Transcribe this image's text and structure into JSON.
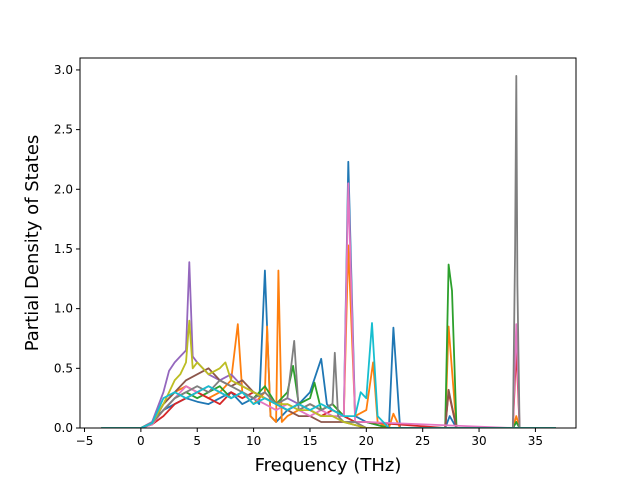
{
  "chart_data": {
    "type": "line",
    "title": "",
    "xlabel": "Frequency (THz)",
    "ylabel": "Partial Density of States",
    "xlim": [
      -5.4,
      38.6
    ],
    "ylim": [
      0.0,
      3.1
    ],
    "xticks": [
      -5,
      0,
      5,
      10,
      15,
      20,
      25,
      30,
      35
    ],
    "xtick_labels": [
      "−5",
      "0",
      "5",
      "10",
      "15",
      "20",
      "25",
      "30",
      "35"
    ],
    "yticks": [
      0.0,
      0.5,
      1.0,
      1.5,
      2.0,
      2.5,
      3.0
    ],
    "ytick_labels": [
      "0.0",
      "0.5",
      "1.0",
      "1.5",
      "2.0",
      "2.5",
      "3.0"
    ],
    "grid": false,
    "legend": "none",
    "colors": [
      "#1f77b4",
      "#ff7f0e",
      "#2ca02c",
      "#d62728",
      "#9467bd",
      "#8c564b",
      "#e377c2",
      "#7f7f7f",
      "#bcbd22",
      "#17becf"
    ],
    "series": [
      {
        "color": "#1f77b4",
        "x": [
          -3.5,
          0,
          1,
          2,
          3,
          4,
          5,
          6,
          7,
          8,
          9,
          10,
          10.5,
          11,
          11.5,
          12,
          13,
          14,
          15,
          16,
          16.5,
          17,
          18,
          18.4,
          19,
          20,
          22,
          22.4,
          23,
          27,
          27.4,
          28,
          33,
          33.3,
          33.6,
          36.8
        ],
        "y": [
          0,
          0,
          0.05,
          0.15,
          0.2,
          0.25,
          0.22,
          0.2,
          0.25,
          0.3,
          0.2,
          0.25,
          0.2,
          1.32,
          0.1,
          0.05,
          0.15,
          0.2,
          0.3,
          0.58,
          0.2,
          0.15,
          0.1,
          2.23,
          0.1,
          0.05,
          0,
          0.84,
          0,
          0,
          0.1,
          0,
          0,
          0.05,
          0,
          0
        ]
      },
      {
        "color": "#ff7f0e",
        "x": [
          -3.5,
          0,
          1,
          2,
          3,
          4,
          5,
          6,
          7,
          8,
          8.6,
          9,
          10,
          11,
          11.2,
          11.5,
          12,
          12.2,
          12.5,
          13,
          14,
          15,
          16,
          17,
          18,
          18.4,
          19,
          20,
          20.6,
          21,
          22,
          22.4,
          23,
          27,
          27.3,
          28,
          33,
          33.3,
          33.6,
          36.8
        ],
        "y": [
          0,
          0,
          0.05,
          0.2,
          0.3,
          0.35,
          0.3,
          0.25,
          0.3,
          0.4,
          0.87,
          0.3,
          0.2,
          0.3,
          0.85,
          0.1,
          0.05,
          1.32,
          0.05,
          0.1,
          0.15,
          0.2,
          0.15,
          0.2,
          0.1,
          1.53,
          0.1,
          0.15,
          0.55,
          0.05,
          0,
          0.12,
          0,
          0,
          0.85,
          0,
          0,
          0.1,
          0,
          0
        ]
      },
      {
        "color": "#2ca02c",
        "x": [
          -3.5,
          0,
          1,
          2,
          3,
          4,
          5,
          6,
          7,
          8,
          9,
          10,
          11,
          12,
          13,
          13.5,
          14,
          15,
          15.4,
          16,
          17,
          18,
          19,
          20,
          22,
          27,
          27.3,
          27.6,
          28,
          33,
          33.3,
          33.6,
          36.8
        ],
        "y": [
          0,
          0,
          0.04,
          0.15,
          0.25,
          0.3,
          0.25,
          0.3,
          0.35,
          0.25,
          0.3,
          0.25,
          0.35,
          0.2,
          0.3,
          0.52,
          0.2,
          0.25,
          0.38,
          0.15,
          0.2,
          0.1,
          0.05,
          0.05,
          0,
          0,
          1.37,
          1.15,
          0,
          0,
          0.05,
          0,
          0
        ]
      },
      {
        "color": "#d62728",
        "x": [
          -3.5,
          0,
          1,
          2,
          3,
          4,
          5,
          6,
          7,
          8,
          9,
          10,
          11,
          12,
          13,
          14,
          15,
          16,
          17,
          18,
          19,
          20,
          27,
          27.3,
          28,
          33,
          33.3,
          33.6,
          36.8
        ],
        "y": [
          0,
          0,
          0.03,
          0.1,
          0.2,
          0.25,
          0.3,
          0.25,
          0.2,
          0.3,
          0.25,
          0.3,
          0.25,
          0.2,
          0.15,
          0.2,
          0.15,
          0.1,
          0.15,
          0.1,
          0.05,
          0.05,
          0,
          0.3,
          0,
          0,
          0.67,
          0,
          0
        ]
      },
      {
        "color": "#9467bd",
        "x": [
          -3.5,
          0,
          1,
          2,
          2.5,
          3,
          3.5,
          4,
          4.3,
          4.6,
          5,
          6,
          7,
          8,
          9,
          10,
          11,
          12,
          13,
          14,
          15,
          16,
          17,
          18,
          19,
          20,
          36.8
        ],
        "y": [
          0,
          0,
          0.05,
          0.3,
          0.48,
          0.55,
          0.6,
          0.65,
          1.39,
          0.6,
          0.55,
          0.45,
          0.4,
          0.45,
          0.35,
          0.3,
          0.25,
          0.2,
          0.25,
          0.2,
          0.15,
          0.1,
          0.1,
          0.05,
          0.05,
          0,
          0
        ]
      },
      {
        "color": "#8c564b",
        "x": [
          -3.5,
          0,
          1,
          2,
          3,
          4,
          5,
          6,
          7,
          8,
          9,
          10,
          11,
          12,
          13,
          14,
          15,
          16,
          17,
          18,
          20,
          27,
          27.3,
          28,
          36.8
        ],
        "y": [
          0,
          0,
          0.03,
          0.2,
          0.3,
          0.4,
          0.45,
          0.5,
          0.4,
          0.35,
          0.4,
          0.3,
          0.25,
          0.2,
          0.15,
          0.1,
          0.1,
          0.05,
          0.05,
          0.05,
          0,
          0,
          0.32,
          0,
          0
        ]
      },
      {
        "color": "#e377c2",
        "x": [
          -3.5,
          0,
          1,
          2,
          3,
          4,
          5,
          6,
          7,
          8,
          9,
          10,
          11,
          12,
          13,
          14,
          15,
          16,
          17,
          18,
          18.4,
          19,
          20,
          33,
          33.3,
          33.6,
          36.8
        ],
        "y": [
          0,
          0,
          0.03,
          0.15,
          0.25,
          0.35,
          0.3,
          0.35,
          0.3,
          0.25,
          0.3,
          0.25,
          0.2,
          0.15,
          0.2,
          0.15,
          0.1,
          0.15,
          0.1,
          0.1,
          2.05,
          0.05,
          0.05,
          0,
          0.87,
          0,
          0
        ]
      },
      {
        "color": "#7f7f7f",
        "x": [
          -3.5,
          0,
          1,
          2,
          3,
          4,
          5,
          6,
          7,
          8,
          9,
          10,
          11,
          12,
          13,
          13.6,
          14,
          15,
          16,
          17,
          17.2,
          17.5,
          18,
          19,
          20,
          33,
          33.2,
          33.3,
          33.4,
          33.6,
          36.8
        ],
        "y": [
          0,
          0,
          0.04,
          0.15,
          0.25,
          0.3,
          0.35,
          0.3,
          0.4,
          0.35,
          0.3,
          0.25,
          0.3,
          0.2,
          0.25,
          0.73,
          0.15,
          0.2,
          0.15,
          0.2,
          0.63,
          0.1,
          0.05,
          0.05,
          0,
          0,
          1.5,
          2.95,
          1.2,
          0,
          0
        ]
      },
      {
        "color": "#bcbd22",
        "x": [
          -3.5,
          0,
          1,
          2,
          3,
          3.5,
          4,
          4.3,
          4.6,
          5,
          6,
          7,
          7.5,
          8,
          9,
          10,
          11,
          12,
          13,
          14,
          15,
          16,
          17,
          18,
          20,
          36.8
        ],
        "y": [
          0,
          0,
          0.04,
          0.2,
          0.4,
          0.45,
          0.55,
          0.9,
          0.5,
          0.55,
          0.45,
          0.5,
          0.55,
          0.4,
          0.35,
          0.3,
          0.25,
          0.2,
          0.2,
          0.15,
          0.15,
          0.1,
          0.1,
          0.05,
          0,
          0
        ]
      },
      {
        "color": "#17becf",
        "x": [
          -3.5,
          0,
          1,
          2,
          3,
          4,
          5,
          6,
          7,
          8,
          9,
          10,
          11,
          12,
          13,
          14,
          15,
          16,
          17,
          18,
          19,
          19.5,
          20,
          20.5,
          21,
          22,
          36.8
        ],
        "y": [
          0,
          0,
          0.04,
          0.25,
          0.3,
          0.25,
          0.3,
          0.35,
          0.3,
          0.25,
          0.3,
          0.2,
          0.25,
          0.2,
          0.15,
          0.2,
          0.15,
          0.2,
          0.15,
          0.1,
          0.1,
          0.3,
          0.25,
          0.88,
          0.1,
          0,
          0
        ]
      }
    ]
  }
}
